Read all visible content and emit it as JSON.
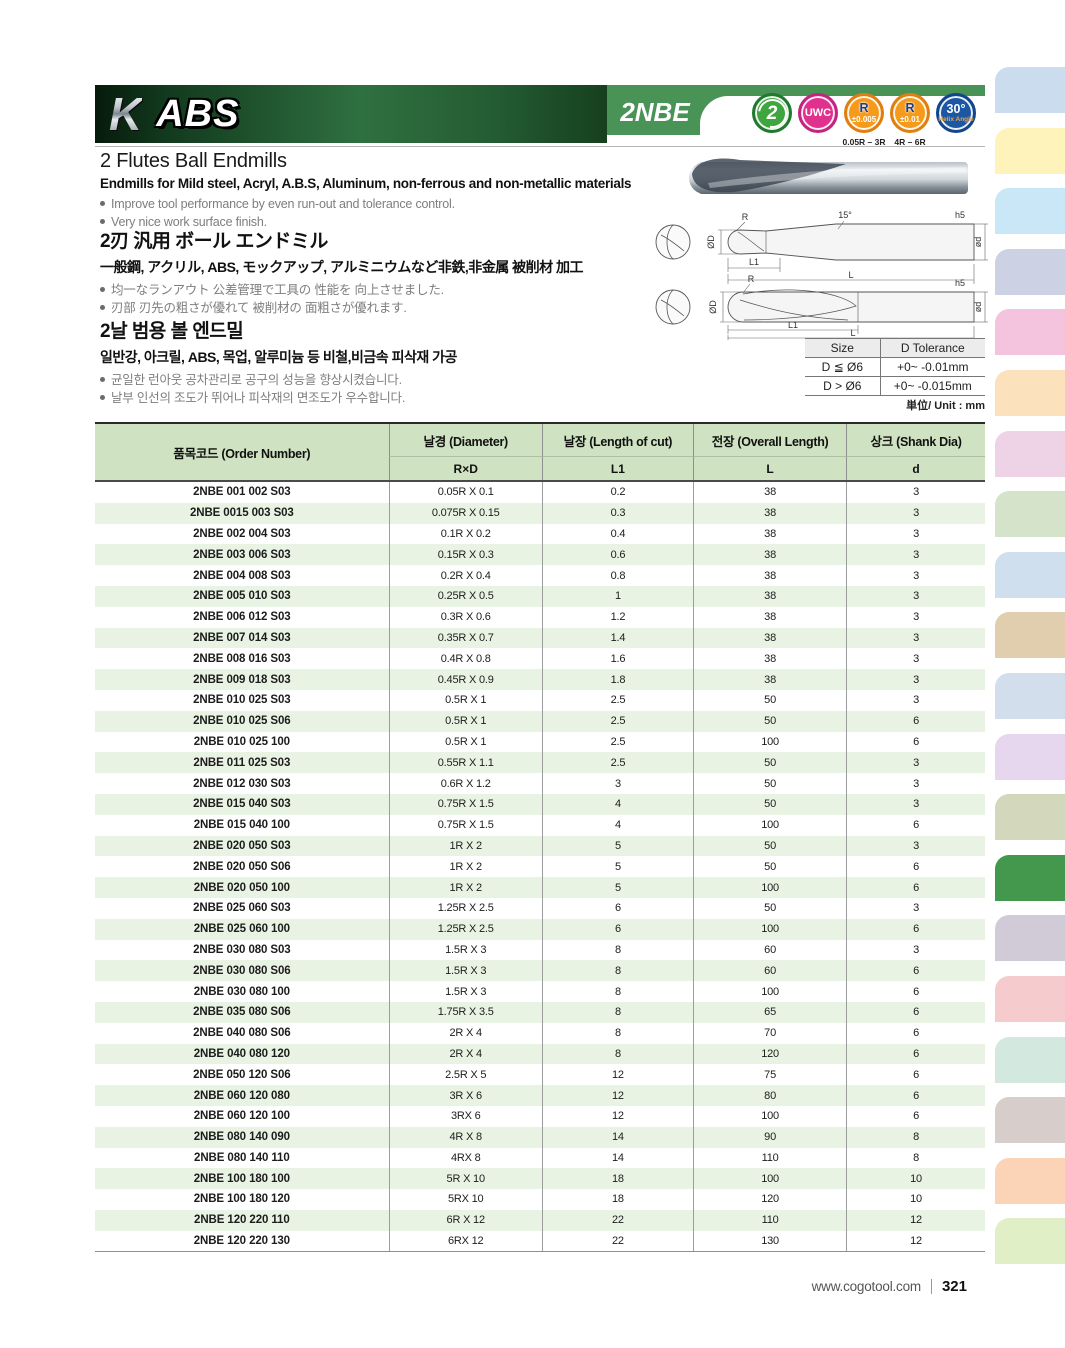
{
  "header": {
    "logo_k": "K",
    "logo_abs": "ABS",
    "series": "2NBE",
    "bar_gradient_left": "#123a1e",
    "bar_green": "#4a9357",
    "badges": [
      {
        "name": "badge-2-flutes",
        "cls": "flutes",
        "label": "2",
        "fill": "#3fa63f",
        "ring": "#1f7a2f"
      },
      {
        "name": "badge-uwc",
        "cls": "uwc",
        "label": "UWC",
        "fill": "#e0318e",
        "ring": "#c2247f"
      },
      {
        "name": "badge-r-tolerance-005",
        "cls": "rtol",
        "label": "R",
        "sub": "±0.005",
        "range": "0.05R – 3R",
        "fill": "#f59a1a",
        "ring": "#e07f10"
      },
      {
        "name": "badge-r-tolerance-01",
        "cls": "rtol",
        "label": "R",
        "sub": "±0.01",
        "range": "4R – 6R",
        "fill": "#f59a1a",
        "ring": "#e07f10"
      },
      {
        "name": "badge-helix-angle",
        "cls": "helix",
        "label": "30°",
        "sub": "Helix Angle",
        "fill": "#1c57a5",
        "ring": "#12458c"
      }
    ]
  },
  "intro_en": {
    "title": "2 Flutes Ball Endmills",
    "subtitle": "Endmills for Mild steel, Acryl, A.B.S, Aluminum, non-ferrous and non-metallic materials",
    "bullets": [
      "Improve tool performance by even run-out and tolerance control.",
      "Very nice work surface finish."
    ]
  },
  "intro_jp": {
    "title": "2刃 汎用 ボール エンドミル",
    "subtitle": "一般鋼, アクリル, ABS, モックアップ, アルミニウムなど非鉄,非金属 被削材 加工",
    "bullets": [
      "均一なランアウト 公差管理で工具の 性能を 向上させました.",
      "刃部 刃先の粗さが優れて 被削材の 面粗さが優れます."
    ]
  },
  "intro_kr": {
    "title": "2날 범용 볼 엔드밀",
    "subtitle": "일반강, 아크릴, ABS, 목업, 알루미늄 등 비철,비금속 피삭재 가공",
    "bullets": [
      "균일한 런아웃 공차관리로 공구의 성능을 향상시켰습니다.",
      "날부 인선의 조도가 뛰어나 피삭재의 면조도가 우수합니다."
    ]
  },
  "drawing_labels": {
    "radius": "R",
    "diameter": "ØD",
    "length_of_cut": "L1",
    "overall_length": "L",
    "shank_tolerance": "h5",
    "shank_diameter": "ød",
    "taper_angle": "15°"
  },
  "tolerance_table": {
    "headers": [
      "Size",
      "D Tolerance"
    ],
    "rows": [
      [
        "D ≦ Ø6",
        "+0~ -0.01mm"
      ],
      [
        "D > Ø6",
        "+0~ -0.015mm"
      ]
    ]
  },
  "unit_note": "単位/ Unit : mm",
  "table": {
    "col_order": "품목코드 (Order Number)",
    "col_diameter": "날경 (Diameter)",
    "col_length_of_cut": "날장 (Length of cut)",
    "col_overall_length": "전장 (Overall Length)",
    "col_shank": "상크 (Shank Dia)",
    "sub_rxd": "R×D",
    "sub_l1": "L1",
    "sub_l": "L",
    "sub_d": "d",
    "header_bg": "#cfe2c2",
    "alt_row_bg": "#e9f3e4",
    "rows": [
      [
        "2NBE 001 002 S03",
        "0.05R X 0.1",
        "0.2",
        "38",
        "3"
      ],
      [
        "2NBE 0015 003 S03",
        "0.075R X 0.15",
        "0.3",
        "38",
        "3"
      ],
      [
        "2NBE 002 004 S03",
        "0.1R X 0.2",
        "0.4",
        "38",
        "3"
      ],
      [
        "2NBE 003 006 S03",
        "0.15R X 0.3",
        "0.6",
        "38",
        "3"
      ],
      [
        "2NBE 004 008 S03",
        "0.2R X 0.4",
        "0.8",
        "38",
        "3"
      ],
      [
        "2NBE 005 010 S03",
        "0.25R X 0.5",
        "1",
        "38",
        "3"
      ],
      [
        "2NBE 006 012 S03",
        "0.3R X 0.6",
        "1.2",
        "38",
        "3"
      ],
      [
        "2NBE 007 014 S03",
        "0.35R X 0.7",
        "1.4",
        "38",
        "3"
      ],
      [
        "2NBE 008 016 S03",
        "0.4R X 0.8",
        "1.6",
        "38",
        "3"
      ],
      [
        "2NBE 009 018 S03",
        "0.45R X 0.9",
        "1.8",
        "38",
        "3"
      ],
      [
        "2NBE 010 025 S03",
        "0.5R X 1",
        "2.5",
        "50",
        "3"
      ],
      [
        "2NBE 010 025 S06",
        "0.5R X 1",
        "2.5",
        "50",
        "6"
      ],
      [
        "2NBE 010 025 100",
        "0.5R X 1",
        "2.5",
        "100",
        "6"
      ],
      [
        "2NBE 011 025 S03",
        "0.55R X 1.1",
        "2.5",
        "50",
        "3"
      ],
      [
        "2NBE 012 030 S03",
        "0.6R X 1.2",
        "3",
        "50",
        "3"
      ],
      [
        "2NBE 015 040 S03",
        "0.75R X 1.5",
        "4",
        "50",
        "3"
      ],
      [
        "2NBE 015 040 100",
        "0.75R X 1.5",
        "4",
        "100",
        "6"
      ],
      [
        "2NBE 020 050 S03",
        "1R X 2",
        "5",
        "50",
        "3"
      ],
      [
        "2NBE 020 050 S06",
        "1R X 2",
        "5",
        "50",
        "6"
      ],
      [
        "2NBE 020 050 100",
        "1R X 2",
        "5",
        "100",
        "6"
      ],
      [
        "2NBE 025 060 S03",
        "1.25R X 2.5",
        "6",
        "50",
        "3"
      ],
      [
        "2NBE 025 060 100",
        "1.25R X 2.5",
        "6",
        "100",
        "6"
      ],
      [
        "2NBE 030 080 S03",
        "1.5R X 3",
        "8",
        "60",
        "3"
      ],
      [
        "2NBE 030 080 S06",
        "1.5R X 3",
        "8",
        "60",
        "6"
      ],
      [
        "2NBE 030 080 100",
        "1.5R X 3",
        "8",
        "100",
        "6"
      ],
      [
        "2NBE 035 080 S06",
        "1.75R X 3.5",
        "8",
        "65",
        "6"
      ],
      [
        "2NBE 040 080 S06",
        "2R X 4",
        "8",
        "70",
        "6"
      ],
      [
        "2NBE 040 080 120",
        "2R X 4",
        "8",
        "120",
        "6"
      ],
      [
        "2NBE 050 120 S06",
        "2.5R X 5",
        "12",
        "75",
        "6"
      ],
      [
        "2NBE 060 120 080",
        "3R X 6",
        "12",
        "80",
        "6"
      ],
      [
        "2NBE 060 120 100",
        "3RX 6",
        "12",
        "100",
        "6"
      ],
      [
        "2NBE 080 140 090",
        "4R X 8",
        "14",
        "90",
        "8"
      ],
      [
        "2NBE 080 140 110",
        "4RX 8",
        "14",
        "110",
        "8"
      ],
      [
        "2NBE 100 180 100",
        "5R X 10",
        "18",
        "100",
        "10"
      ],
      [
        "2NBE 100 180 120",
        "5RX 10",
        "18",
        "120",
        "10"
      ],
      [
        "2NBE 120 220 110",
        "6R X 12",
        "22",
        "110",
        "12"
      ],
      [
        "2NBE 120 220 130",
        "6RX 12",
        "22",
        "130",
        "12"
      ]
    ]
  },
  "footer": {
    "url": "www.cogotool.com",
    "page": "321"
  },
  "sidebar": {
    "active_color": "#44984e",
    "tabs": [
      {
        "color": "#cbdcee"
      },
      {
        "color": "#fdf3bb"
      },
      {
        "color": "#c9e7f7"
      },
      {
        "color": "#ccd1e3"
      },
      {
        "color": "#f4c3dd"
      },
      {
        "color": "#fbe2bd"
      },
      {
        "color": "#eed3e7"
      },
      {
        "color": "#d5e3cb"
      },
      {
        "color": "#cfdfee"
      },
      {
        "color": "#e1ceae"
      },
      {
        "color": "#d3deed"
      },
      {
        "color": "#e6d7ee"
      },
      {
        "color": "#d3d7bb"
      },
      {
        "color": "#44984e",
        "active": true
      },
      {
        "color": "#d1cbd7"
      },
      {
        "color": "#f6cbce"
      },
      {
        "color": "#d3e9df"
      },
      {
        "color": "#d7cdcb"
      },
      {
        "color": "#fbd3b7"
      },
      {
        "color": "#e1efc7"
      }
    ]
  }
}
